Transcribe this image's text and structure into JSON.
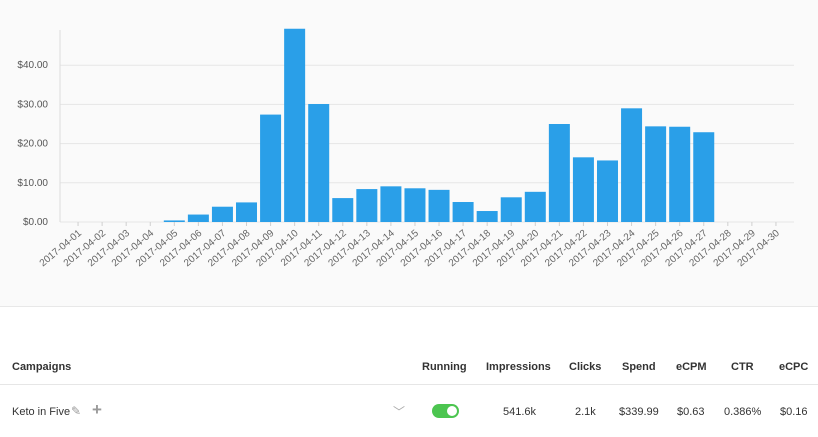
{
  "chart_data": {
    "type": "bar",
    "categories": [
      "2017-04-01",
      "2017-04-02",
      "2017-04-03",
      "2017-04-04",
      "2017-04-05",
      "2017-04-06",
      "2017-04-07",
      "2017-04-08",
      "2017-04-09",
      "2017-04-10",
      "2017-04-11",
      "2017-04-12",
      "2017-04-13",
      "2017-04-14",
      "2017-04-15",
      "2017-04-16",
      "2017-04-17",
      "2017-04-18",
      "2017-04-19",
      "2017-04-20",
      "2017-04-21",
      "2017-04-22",
      "2017-04-23",
      "2017-04-24",
      "2017-04-25",
      "2017-04-26",
      "2017-04-27",
      "2017-04-28",
      "2017-04-29",
      "2017-04-30"
    ],
    "values": [
      0,
      0,
      0,
      0,
      0.4,
      1.9,
      3.9,
      5.0,
      27.4,
      49.3,
      30.1,
      6.1,
      8.4,
      9.1,
      8.6,
      8.2,
      5.1,
      2.8,
      6.3,
      7.7,
      25.0,
      16.5,
      15.7,
      29.0,
      24.4,
      24.3,
      22.9,
      0,
      0,
      0
    ],
    "ylim": [
      0,
      50
    ],
    "yticks": [
      "$0.00",
      "$10.00",
      "$20.00",
      "$30.00",
      "$40.00"
    ],
    "ytick_values": [
      0,
      10,
      20,
      30,
      40
    ],
    "color": "#2a9fe8",
    "grid": true
  },
  "table": {
    "headers": {
      "campaigns": "Campaigns",
      "running": "Running",
      "impressions": "Impressions",
      "clicks": "Clicks",
      "spend": "Spend",
      "ecpm": "eCPM",
      "ctr": "CTR",
      "ecpc": "eCPC"
    },
    "row": {
      "name": "Keto in Five",
      "edit_icon": "pencil-icon",
      "add_icon": "plus-icon",
      "expand_icon": "chevron-down-icon",
      "running": true,
      "impressions": "541.6k",
      "clicks": "2.1k",
      "spend": "$339.99",
      "ecpm": "$0.63",
      "ctr": "0.386%",
      "ecpc": "$0.16"
    }
  },
  "colors": {
    "accent": "#2a9fe8",
    "toggle_on": "#4cc550"
  }
}
